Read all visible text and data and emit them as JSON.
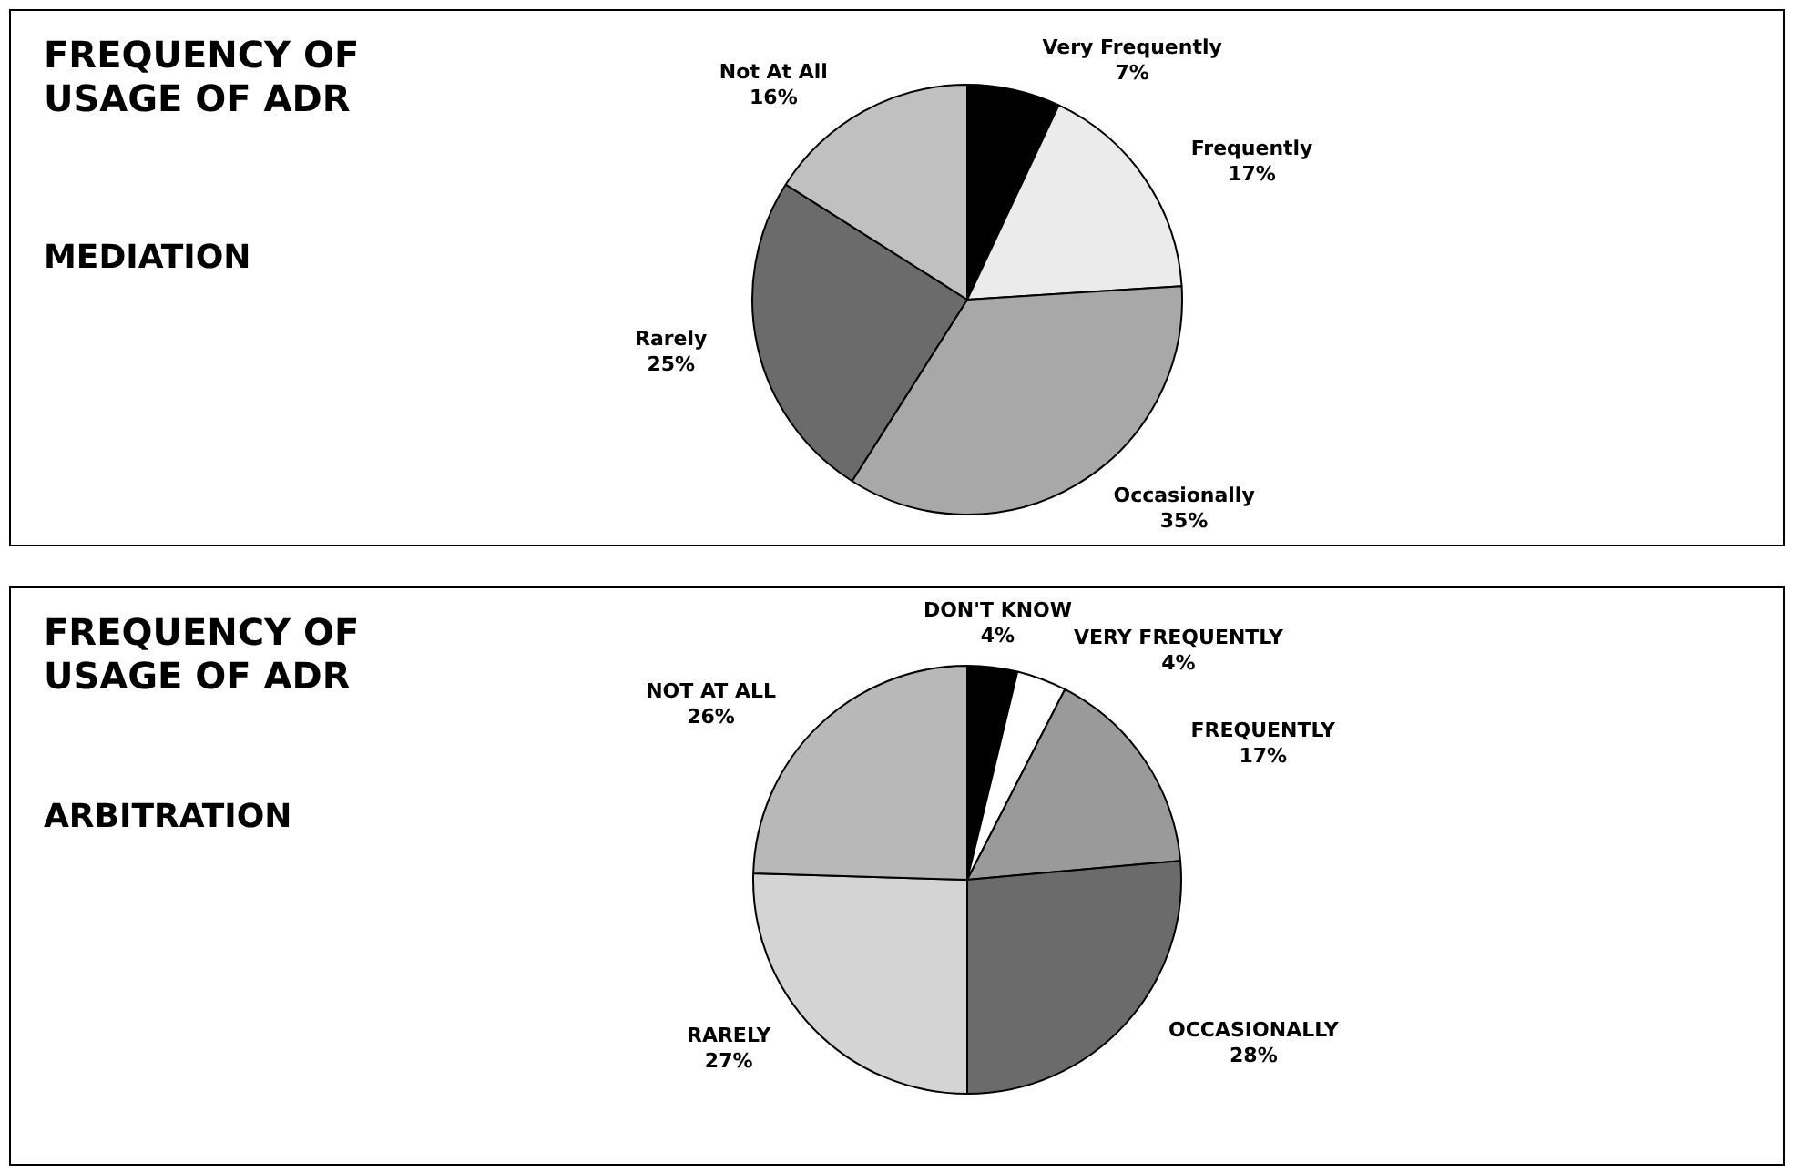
{
  "chart_data": [
    {
      "type": "pie",
      "title": "FREQUENCY OF USAGE OF ADR",
      "subtitle": "MEDIATION",
      "categories": [
        "Very Frequently",
        "Frequently",
        "Occasionally",
        "Rarely",
        "Not At All"
      ],
      "values": [
        7,
        17,
        35,
        25,
        16
      ],
      "colors": [
        "#000000",
        "#ebebeb",
        "#a8a8a8",
        "#6b6b6b",
        "#c0c0c0"
      ],
      "value_labels": [
        "7%",
        "17%",
        "35%",
        "25%",
        "16%"
      ]
    },
    {
      "type": "pie",
      "title": "FREQUENCY OF USAGE OF ADR",
      "subtitle": "ARBITRATION",
      "categories": [
        "DON'T KNOW",
        "VERY FREQUENTLY",
        "FREQUENTLY",
        "OCCASIONALLY",
        "RARELY",
        "NOT AT ALL"
      ],
      "values": [
        4,
        4,
        17,
        28,
        27,
        26
      ],
      "colors": [
        "#000000",
        "#ffffff",
        "#9a9a9a",
        "#6b6b6b",
        "#d4d4d4",
        "#b8b8b8"
      ],
      "value_labels": [
        "4%",
        "4%",
        "17%",
        "28%",
        "27%",
        "26%"
      ]
    }
  ]
}
